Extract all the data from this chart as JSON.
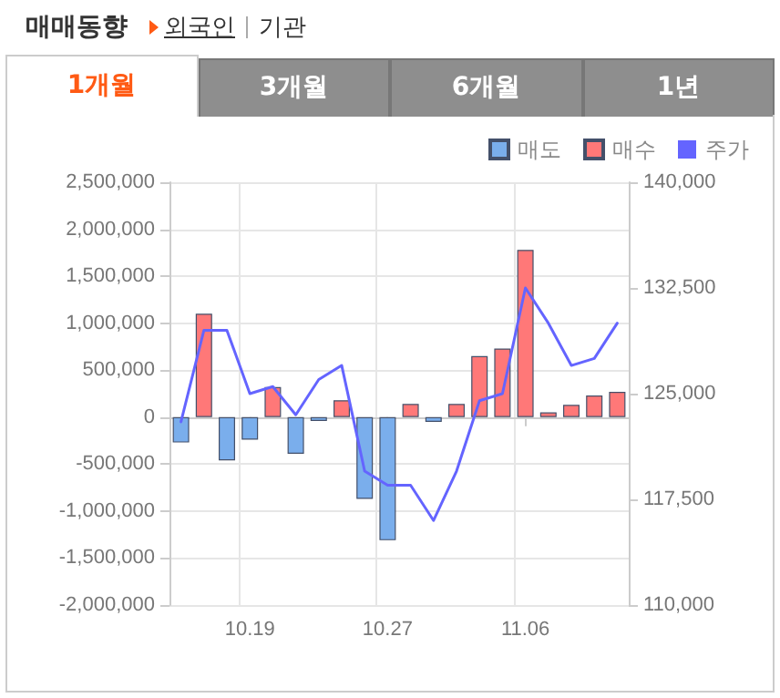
{
  "chart_data": {
    "type": "bar",
    "title": "매매동향",
    "annotations": [
      "외국인",
      "기관",
      "1개월",
      "3개월",
      "6개월",
      "1년"
    ],
    "categories": [
      null,
      null,
      null,
      "10.19",
      null,
      null,
      null,
      null,
      null,
      "10.27",
      null,
      null,
      null,
      null,
      null,
      "11.06",
      null,
      null,
      null,
      null
    ],
    "series": [
      {
        "name": "매도",
        "color": "#7aaeec",
        "values": [
          -270000,
          null,
          -460000,
          -240000,
          null,
          -390000,
          -40000,
          null,
          -870000,
          -1310000,
          null,
          -50000,
          null,
          null,
          null,
          null,
          null,
          null,
          null,
          null
        ]
      },
      {
        "name": "매수",
        "color": "#ff7878",
        "values": [
          null,
          1100000,
          null,
          null,
          320000,
          null,
          null,
          180000,
          null,
          null,
          140000,
          null,
          140000,
          650000,
          730000,
          1780000,
          50000,
          130000,
          230000,
          270000
        ]
      },
      {
        "name": "주가",
        "type": "line",
        "axis": "y2",
        "color": "#6464ff",
        "values": [
          123000,
          129500,
          129500,
          125000,
          125500,
          123500,
          126000,
          127000,
          119500,
          118500,
          118500,
          116000,
          119500,
          124500,
          125000,
          132500,
          130000,
          127000,
          127500,
          130000
        ]
      }
    ],
    "ylim": [
      -2000000,
      2500000
    ],
    "yticks": [
      {
        "value": -2000000,
        "label": "-2,000,000"
      },
      {
        "value": -1500000,
        "label": "-1,500,000"
      },
      {
        "value": -1000000,
        "label": "-1,000,000"
      },
      {
        "value": -500000,
        "label": "-500,000"
      },
      {
        "value": 0,
        "label": "0"
      },
      {
        "value": 500000,
        "label": "500,000"
      },
      {
        "value": 1000000,
        "label": "1,000,000"
      },
      {
        "value": 1500000,
        "label": "1,500,000"
      },
      {
        "value": 2000000,
        "label": "2,000,000"
      },
      {
        "value": 2500000,
        "label": "2,500,000"
      }
    ],
    "y2lim": [
      110000,
      140000
    ],
    "y2ticks": [
      {
        "value": 110000,
        "label": "110,000"
      },
      {
        "value": 117500,
        "label": "117,500"
      },
      {
        "value": 125000,
        "label": "125,000"
      },
      {
        "value": 132500,
        "label": "132,500"
      },
      {
        "value": 140000,
        "label": "140,000"
      }
    ],
    "grid": true,
    "legend": "top right",
    "marker": "none",
    "line_style": "solid"
  }
}
